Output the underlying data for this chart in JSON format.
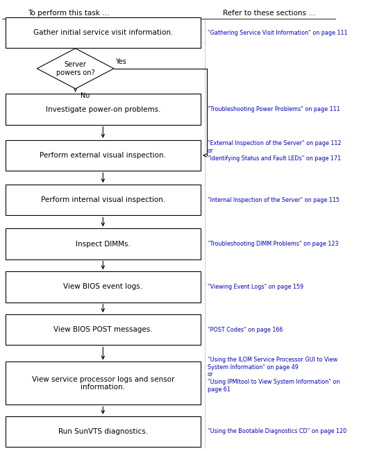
{
  "title_left": "To perform this task ...",
  "title_right": "Refer to these sections ...",
  "bg": "#ffffff",
  "box_edge": "#000000",
  "text_color": "#000000",
  "link_color": "#0000bb",
  "arrow_color": "#000000",
  "steps": [
    {
      "label": "Gather initial service visit information.",
      "ref": "\"Gathering Service Visit Information\" on page 111"
    },
    {
      "label": "Investigate power-on problems.",
      "ref": "\"Troubleshooting Power Problems\" on page 111"
    },
    {
      "label": "Perform external visual inspection.",
      "ref": "\"External Inspection of the Server\" on page 112\nor\n\"Identifying Status and Fault LEDs\" on page 171"
    },
    {
      "label": "Perform internal visual inspection.",
      "ref": "\"Internal Inspection of the Server\" on page 115"
    },
    {
      "label": "Inspect DIMMs.",
      "ref": "\"Troubleshooting DIMM Problems\" on page 123"
    },
    {
      "label": "View BIOS event logs.",
      "ref": "\"Viewing Event Logs\" on page 159"
    },
    {
      "label": "View BIOS POST messages.",
      "ref": "\"POST Codes\" on page 166"
    },
    {
      "label": "View service processor logs and sensor\ninformation.",
      "ref": "\"Using the ILOM Service Processor GUI to View\nSystem Information\" on page 49\nor\n\"Using IPMItool to View System Information\" on\npage 61"
    },
    {
      "label": "Run SunVTS diagnostics.",
      "ref": "\"Using the Bootable Diagnostics CD\" on page 120"
    }
  ],
  "diamond_label": "Server\npowers on?",
  "yes_label": "Yes",
  "no_label": "No"
}
